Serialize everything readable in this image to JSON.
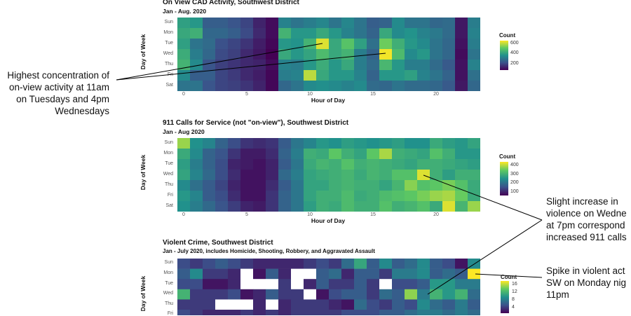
{
  "colors": {
    "low": "#440154",
    "mid": "#21918c",
    "high": "#fde725"
  },
  "chart_data": [
    {
      "type": "heatmap",
      "title": "On View CAD Activity, Southwest District",
      "subtitle": "Jan - Aug. 2020",
      "xlabel": "Hour of Day",
      "ylabel": "Day of Week",
      "legend_title": "Count",
      "legend_ticks": [
        600,
        400,
        200
      ],
      "vmin": 80,
      "vmax": 650,
      "days": [
        "Sun",
        "Mon",
        "Tue",
        "Wed",
        "Thu",
        "Fri",
        "Sat"
      ],
      "hours": [
        0,
        1,
        2,
        3,
        4,
        5,
        6,
        7,
        8,
        9,
        10,
        11,
        12,
        13,
        14,
        15,
        16,
        17,
        18,
        19,
        20,
        21,
        22,
        23
      ],
      "x_ticks": [
        0,
        5,
        10,
        15,
        20
      ],
      "values": [
        [
          400,
          380,
          250,
          250,
          230,
          200,
          140,
          100,
          330,
          300,
          320,
          340,
          300,
          340,
          300,
          250,
          260,
          350,
          300,
          300,
          270,
          280,
          120,
          320
        ],
        [
          420,
          440,
          270,
          270,
          250,
          210,
          150,
          100,
          450,
          380,
          380,
          420,
          380,
          330,
          300,
          260,
          420,
          350,
          370,
          330,
          310,
          280,
          120,
          330
        ],
        [
          400,
          300,
          280,
          220,
          200,
          170,
          130,
          90,
          380,
          370,
          450,
          620,
          420,
          490,
          400,
          290,
          520,
          440,
          380,
          350,
          300,
          270,
          110,
          320
        ],
        [
          430,
          320,
          270,
          210,
          190,
          150,
          120,
          80,
          420,
          380,
          410,
          470,
          420,
          450,
          320,
          260,
          640,
          470,
          350,
          380,
          300,
          270,
          100,
          300
        ],
        [
          450,
          350,
          230,
          190,
          170,
          150,
          140,
          100,
          330,
          320,
          380,
          430,
          380,
          420,
          320,
          280,
          460,
          380,
          320,
          320,
          280,
          240,
          110,
          330
        ],
        [
          350,
          250,
          250,
          200,
          180,
          150,
          130,
          90,
          320,
          330,
          590,
          420,
          380,
          380,
          330,
          260,
          380,
          380,
          400,
          330,
          300,
          260,
          110,
          290
        ],
        [
          300,
          300,
          230,
          200,
          190,
          170,
          140,
          90,
          270,
          300,
          350,
          360,
          350,
          330,
          350,
          280,
          270,
          300,
          280,
          280,
          270,
          240,
          120,
          270
        ]
      ]
    },
    {
      "type": "heatmap",
      "title": "911 Calls for Service (not \"on-view\"), Southwest District",
      "subtitle": "Jan - Aug 2020",
      "xlabel": "Hour of Day",
      "ylabel": "Day of Week",
      "legend_title": "Count",
      "legend_ticks": [
        400,
        300,
        200,
        100
      ],
      "vmin": 60,
      "vmax": 440,
      "days": [
        "Sun",
        "Mon",
        "Tue",
        "Wed",
        "Thu",
        "Fri",
        "Sat"
      ],
      "hours": [
        0,
        1,
        2,
        3,
        4,
        5,
        6,
        7,
        8,
        9,
        10,
        11,
        12,
        13,
        14,
        15,
        16,
        17,
        18,
        19,
        20,
        21,
        22,
        23
      ],
      "x_ticks": [
        0,
        5,
        10,
        15,
        20
      ],
      "values": [
        [
          380,
          250,
          230,
          180,
          150,
          120,
          110,
          120,
          170,
          210,
          230,
          260,
          250,
          270,
          260,
          250,
          260,
          270,
          250,
          250,
          290,
          270,
          260,
          280
        ],
        [
          290,
          240,
          180,
          160,
          120,
          90,
          90,
          110,
          180,
          220,
          300,
          290,
          340,
          300,
          280,
          340,
          390,
          300,
          290,
          280,
          330,
          300,
          260,
          260
        ],
        [
          270,
          220,
          180,
          150,
          100,
          90,
          80,
          100,
          170,
          210,
          290,
          310,
          300,
          330,
          300,
          310,
          300,
          290,
          280,
          300,
          300,
          290,
          280,
          270
        ],
        [
          280,
          230,
          190,
          150,
          110,
          80,
          80,
          100,
          190,
          220,
          280,
          290,
          300,
          310,
          290,
          310,
          300,
          330,
          330,
          420,
          300,
          270,
          300,
          300
        ],
        [
          240,
          200,
          170,
          140,
          100,
          80,
          80,
          110,
          170,
          210,
          280,
          280,
          300,
          310,
          300,
          300,
          280,
          310,
          370,
          330,
          340,
          360,
          330,
          290
        ],
        [
          260,
          230,
          170,
          150,
          110,
          80,
          80,
          120,
          180,
          210,
          280,
          300,
          300,
          320,
          290,
          300,
          320,
          330,
          340,
          360,
          380,
          390,
          350,
          290
        ],
        [
          250,
          220,
          190,
          160,
          130,
          100,
          90,
          120,
          180,
          210,
          270,
          300,
          290,
          320,
          300,
          300,
          330,
          300,
          310,
          330,
          290,
          420,
          310,
          380
        ]
      ]
    },
    {
      "type": "heatmap",
      "title": "Violent Crime, Southwest District",
      "subtitle": "Jan - July 2020, includes Homicide, Shooting, Robbery, and Aggravated Assault",
      "ylabel": "Day of Week",
      "legend_title": "Count",
      "legend_ticks": [
        16,
        12,
        8,
        4
      ],
      "vmin": 1,
      "vmax": 18,
      "days": [
        "Sun",
        "Mon",
        "Tue",
        "Wed",
        "Thu",
        "Fri"
      ],
      "hours": [
        0,
        1,
        2,
        3,
        4,
        5,
        6,
        7,
        8,
        9,
        10,
        11,
        12,
        13,
        14,
        15,
        16,
        17,
        18,
        19,
        20,
        21,
        22,
        23
      ],
      "values": [
        [
          5,
          4,
          5,
          6,
          5,
          4,
          3,
          3,
          3,
          3,
          4,
          5,
          4,
          7,
          11,
          6,
          9,
          6,
          7,
          9,
          6,
          5,
          2,
          9
        ],
        [
          6,
          9,
          4,
          4,
          3,
          0,
          2,
          6,
          3,
          0,
          0,
          6,
          7,
          3,
          6,
          6,
          4,
          8,
          8,
          9,
          6,
          7,
          6,
          18
        ],
        [
          5,
          5,
          2,
          2,
          3,
          0,
          0,
          0,
          4,
          0,
          3,
          6,
          4,
          4,
          6,
          4,
          0,
          5,
          5,
          6,
          10,
          10,
          8,
          8
        ],
        [
          12,
          4,
          4,
          4,
          5,
          2,
          3,
          6,
          4,
          4,
          0,
          2,
          5,
          6,
          6,
          4,
          7,
          6,
          15,
          8,
          12,
          10,
          12,
          7
        ],
        [
          4,
          4,
          4,
          0,
          0,
          0,
          3,
          0,
          3,
          4,
          4,
          4,
          3,
          2,
          7,
          5,
          4,
          6,
          5,
          9,
          7,
          6,
          8,
          6
        ],
        [
          5,
          4,
          3,
          3,
          3,
          4,
          3,
          4,
          3,
          4,
          4,
          4,
          4,
          5,
          5,
          5,
          6,
          6,
          7,
          8,
          8,
          7,
          8,
          7
        ]
      ]
    }
  ],
  "annotations": {
    "a1": [
      "Highest concentration of",
      "on-view activity at 11am",
      "on Tuesdays and 4pm",
      "Wednesdays"
    ],
    "a2": [
      "Slight increase in",
      "violence on Wedne",
      "at 7pm correspond",
      "increased 911 calls"
    ],
    "a3": [
      "Spike in violent act",
      "SW on Monday nig",
      "11pm"
    ]
  }
}
